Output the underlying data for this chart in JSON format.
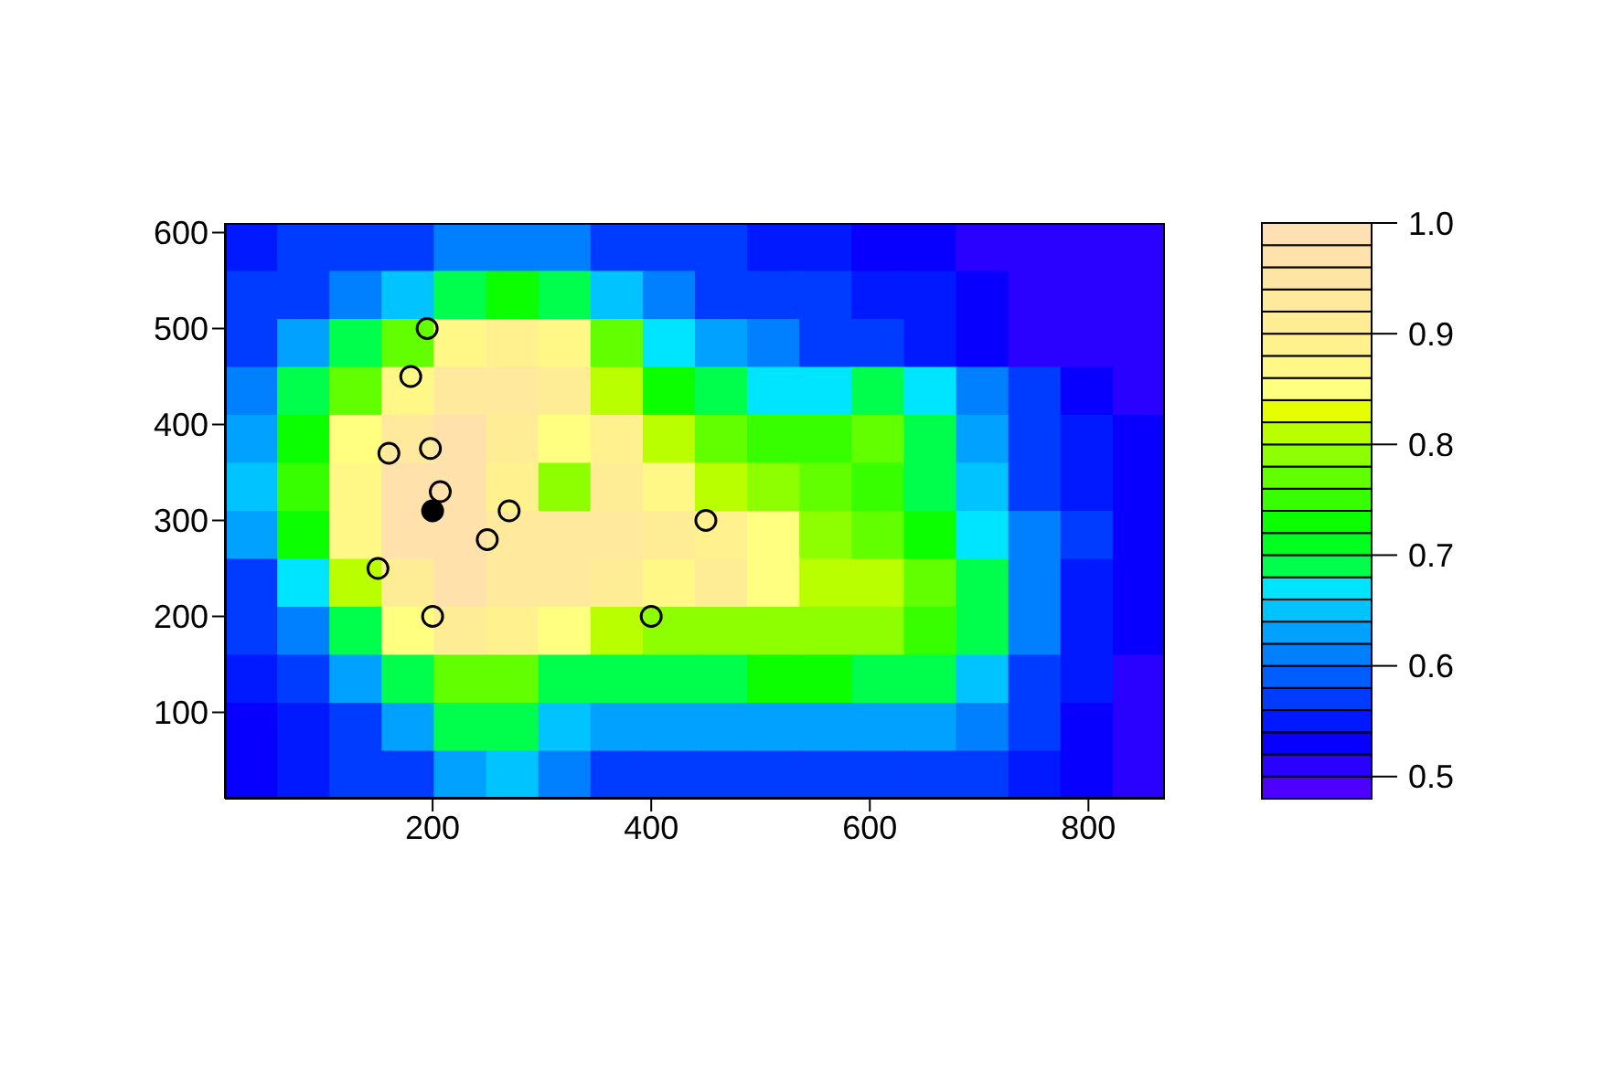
{
  "chart_data": {
    "type": "heatmap",
    "xlim": [
      10,
      870
    ],
    "xticks": [
      200,
      400,
      600,
      800
    ],
    "ylim": [
      10,
      610
    ],
    "yticks": [
      100,
      200,
      300,
      400,
      500,
      600
    ],
    "clim": [
      0.48,
      1.0
    ],
    "cticks": [
      0.5,
      0.6,
      0.7,
      0.8,
      0.9,
      {
        "value": 1.0,
        "label": "1.0"
      }
    ],
    "cells": [
      [
        0.54,
        0.56,
        0.57,
        0.58,
        0.6,
        0.6,
        0.6,
        0.58,
        0.57,
        0.56,
        0.55,
        0.54,
        0.53,
        0.52,
        0.51,
        0.5,
        0.5,
        0.5
      ],
      [
        0.56,
        0.58,
        0.6,
        0.64,
        0.7,
        0.72,
        0.7,
        0.64,
        0.6,
        0.58,
        0.57,
        0.56,
        0.55,
        0.54,
        0.52,
        0.5,
        0.5,
        0.5
      ],
      [
        0.58,
        0.62,
        0.7,
        0.76,
        0.86,
        0.88,
        0.86,
        0.76,
        0.66,
        0.62,
        0.6,
        0.58,
        0.57,
        0.55,
        0.53,
        0.51,
        0.5,
        0.5
      ],
      [
        0.6,
        0.68,
        0.76,
        0.86,
        0.92,
        0.92,
        0.9,
        0.82,
        0.72,
        0.68,
        0.66,
        0.66,
        0.7,
        0.66,
        0.6,
        0.56,
        0.52,
        0.5
      ],
      [
        0.62,
        0.72,
        0.84,
        0.94,
        0.96,
        0.9,
        0.84,
        0.88,
        0.8,
        0.76,
        0.74,
        0.74,
        0.76,
        0.7,
        0.62,
        0.58,
        0.54,
        0.52
      ],
      [
        0.64,
        0.74,
        0.86,
        0.96,
        0.98,
        0.88,
        0.78,
        0.9,
        0.86,
        0.8,
        0.78,
        0.76,
        0.74,
        0.7,
        0.64,
        0.58,
        0.55,
        0.52
      ],
      [
        0.62,
        0.72,
        0.86,
        0.96,
        0.98,
        0.94,
        0.92,
        0.94,
        0.9,
        0.88,
        0.84,
        0.78,
        0.76,
        0.72,
        0.66,
        0.6,
        0.56,
        0.53
      ],
      [
        0.58,
        0.66,
        0.8,
        0.9,
        0.96,
        0.94,
        0.92,
        0.9,
        0.86,
        0.9,
        0.84,
        0.8,
        0.8,
        0.76,
        0.7,
        0.6,
        0.55,
        0.52
      ],
      [
        0.56,
        0.6,
        0.7,
        0.84,
        0.9,
        0.88,
        0.84,
        0.8,
        0.78,
        0.78,
        0.78,
        0.78,
        0.78,
        0.74,
        0.68,
        0.6,
        0.55,
        0.52
      ],
      [
        0.54,
        0.57,
        0.62,
        0.7,
        0.76,
        0.76,
        0.7,
        0.68,
        0.68,
        0.7,
        0.72,
        0.72,
        0.7,
        0.68,
        0.64,
        0.58,
        0.54,
        0.51
      ],
      [
        0.53,
        0.55,
        0.58,
        0.62,
        0.7,
        0.7,
        0.64,
        0.62,
        0.62,
        0.62,
        0.62,
        0.62,
        0.62,
        0.62,
        0.6,
        0.56,
        0.53,
        0.51
      ],
      [
        0.52,
        0.54,
        0.56,
        0.58,
        0.62,
        0.64,
        0.6,
        0.58,
        0.58,
        0.58,
        0.58,
        0.58,
        0.58,
        0.58,
        0.57,
        0.55,
        0.52,
        0.5
      ]
    ],
    "series": [
      {
        "type": "scatter",
        "color": "#000000",
        "x": [
          195,
          180,
          160,
          198,
          207,
          270,
          250,
          150,
          200,
          400,
          450
        ],
        "values": [
          500,
          450,
          370,
          375,
          330,
          310,
          280,
          250,
          200,
          200,
          300
        ]
      },
      {
        "type": "scatter",
        "color": "#000000",
        "x": [
          200
        ],
        "values": [
          310
        ]
      }
    ],
    "marker": "circle"
  }
}
